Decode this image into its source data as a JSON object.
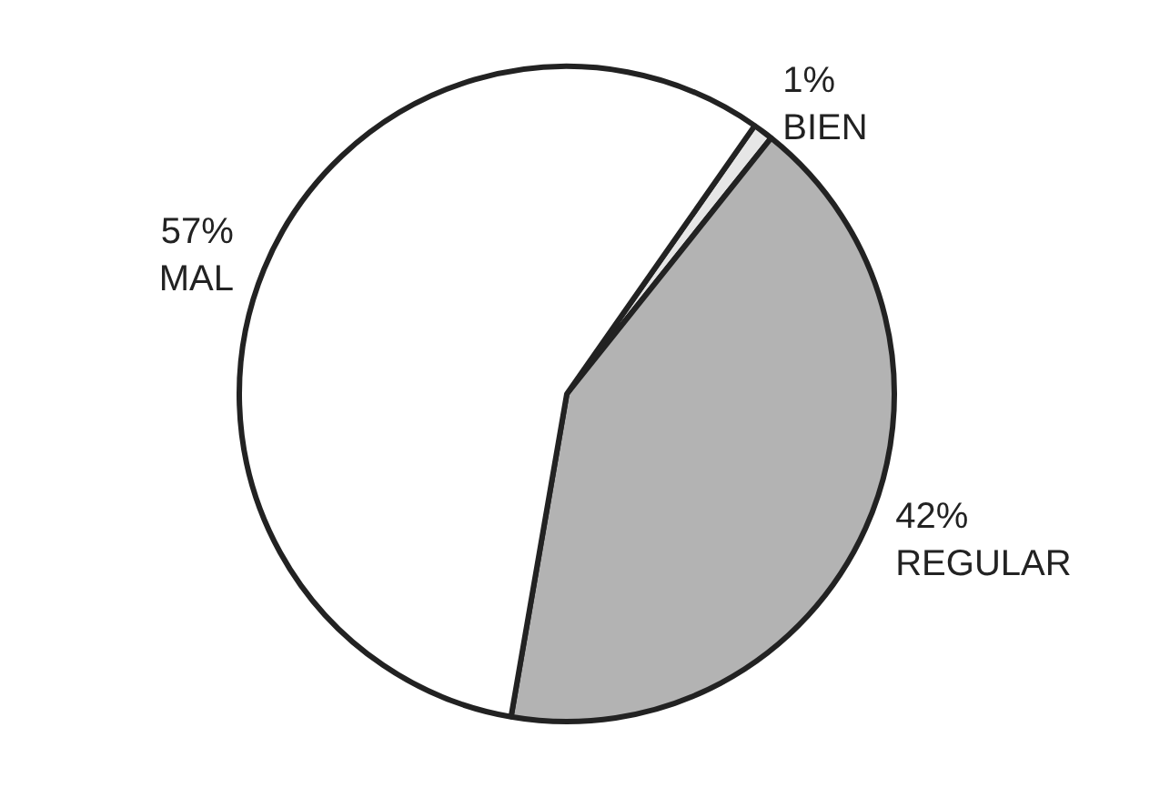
{
  "chart_data": {
    "type": "pie",
    "categories": [
      "BIEN",
      "REGULAR",
      "MAL"
    ],
    "values": [
      1,
      42,
      57
    ],
    "value_labels": [
      "1%",
      "42%",
      "57%"
    ],
    "colors": [
      "#e6e6e6",
      "#b3b3b3",
      "#ffffff"
    ]
  }
}
